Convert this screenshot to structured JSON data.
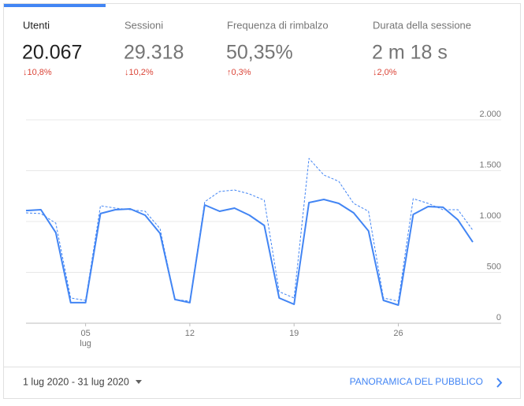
{
  "tabs": [
    {
      "title": "Utenti",
      "value": "20.067",
      "delta": "↓10,8%"
    },
    {
      "title": "Sessioni",
      "value": "29.318",
      "delta": "↓10,2%"
    },
    {
      "title": "Frequenza di rimbalzo",
      "value": "50,35%",
      "delta": "↑0,3%"
    },
    {
      "title": "Durata della sessione",
      "value": "2 m 18 s",
      "delta": "↓2,0%"
    }
  ],
  "chart_data": {
    "type": "line",
    "x": [
      1,
      2,
      3,
      4,
      5,
      6,
      7,
      8,
      9,
      10,
      11,
      12,
      13,
      14,
      15,
      16,
      17,
      18,
      19,
      20,
      21,
      22,
      23,
      24,
      25,
      26,
      27,
      28,
      29,
      30,
      31
    ],
    "xlim": [
      1,
      31
    ],
    "xticks": [
      {
        "value": 5,
        "label": "05"
      },
      12,
      19,
      26
    ],
    "x_tick_sublabel": "lug",
    "ylim": [
      0,
      2000
    ],
    "yticks": [
      {
        "value": 0,
        "label": "0"
      },
      500,
      {
        "value": 1000,
        "label": "1.000"
      },
      {
        "value": 1500,
        "label": "1.500"
      },
      {
        "value": 2000,
        "label": "2.000"
      }
    ],
    "grid": true,
    "series": [
      {
        "color": "#4285f4",
        "style": "solid",
        "values": [
          1108,
          1116,
          891,
          202,
          202,
          1078,
          1116,
          1124,
          1062,
          884,
          233,
          202,
          1163,
          1101,
          1132,
          1062,
          961,
          248,
          186,
          1186,
          1217,
          1178,
          1085,
          907,
          225,
          178,
          1070,
          1147,
          1140,
          1016,
          798
        ]
      },
      {
        "color": "#4285f4",
        "style": "dashed",
        "values": [
          1085,
          1078,
          984,
          248,
          225,
          1155,
          1132,
          1116,
          1101,
          930,
          233,
          217,
          1194,
          1295,
          1310,
          1271,
          1209,
          310,
          248,
          1620,
          1457,
          1395,
          1178,
          1101,
          248,
          217,
          1225,
          1178,
          1116,
          1116,
          915
        ]
      }
    ]
  },
  "footer": {
    "date_range": "1 lug 2020 - 31 lug 2020",
    "link": "PANORAMICA DEL PUBBLICO"
  }
}
